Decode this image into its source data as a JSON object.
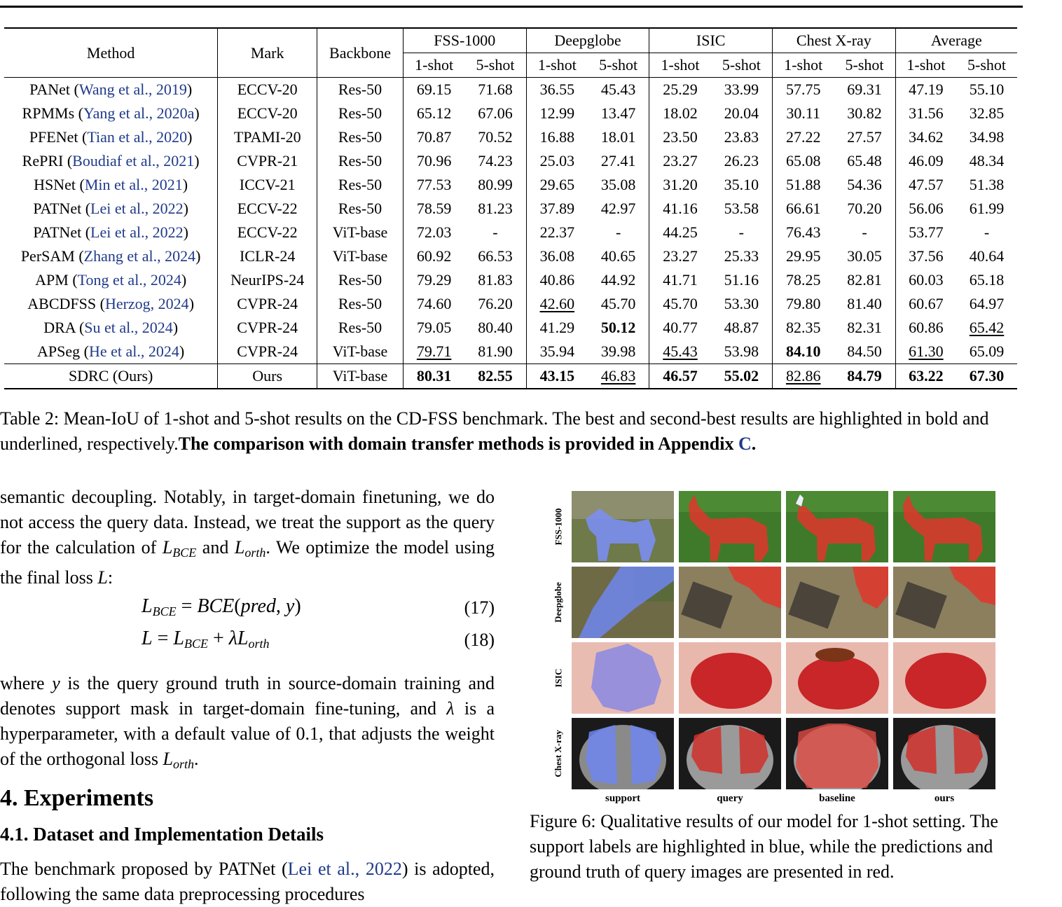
{
  "table": {
    "header": {
      "method": "Method",
      "mark": "Mark",
      "backbone": "Backbone",
      "groups": [
        "FSS-1000",
        "Deepglobe",
        "ISIC",
        "Chest X-ray",
        "Average"
      ],
      "shot1": "1-shot",
      "shot5": "5-shot"
    },
    "rows": [
      {
        "name": "PANet",
        "cite": "Wang et al., 2019",
        "mark": "ECCV-20",
        "backbone": "Res-50",
        "v": [
          "69.15",
          "71.68",
          "36.55",
          "45.43",
          "25.29",
          "33.99",
          "57.75",
          "69.31",
          "47.19",
          "55.10"
        ]
      },
      {
        "name": "RPMMs",
        "cite": "Yang et al., 2020a",
        "mark": "ECCV-20",
        "backbone": "Res-50",
        "v": [
          "65.12",
          "67.06",
          "12.99",
          "13.47",
          "18.02",
          "20.04",
          "30.11",
          "30.82",
          "31.56",
          "32.85"
        ]
      },
      {
        "name": "PFENet",
        "cite": "Tian et al., 2020",
        "mark": "TPAMI-20",
        "backbone": "Res-50",
        "v": [
          "70.87",
          "70.52",
          "16.88",
          "18.01",
          "23.50",
          "23.83",
          "27.22",
          "27.57",
          "34.62",
          "34.98"
        ]
      },
      {
        "name": "RePRI",
        "cite": "Boudiaf et al., 2021",
        "mark": "CVPR-21",
        "backbone": "Res-50",
        "v": [
          "70.96",
          "74.23",
          "25.03",
          "27.41",
          "23.27",
          "26.23",
          "65.08",
          "65.48",
          "46.09",
          "48.34"
        ]
      },
      {
        "name": "HSNet",
        "cite": "Min et al., 2021",
        "mark": "ICCV-21",
        "backbone": "Res-50",
        "v": [
          "77.53",
          "80.99",
          "29.65",
          "35.08",
          "31.20",
          "35.10",
          "51.88",
          "54.36",
          "47.57",
          "51.38"
        ]
      },
      {
        "name": "PATNet",
        "cite": "Lei et al., 2022",
        "mark": "ECCV-22",
        "backbone": "Res-50",
        "v": [
          "78.59",
          "81.23",
          "37.89",
          "42.97",
          "41.16",
          "53.58",
          "66.61",
          "70.20",
          "56.06",
          "61.99"
        ]
      },
      {
        "name": "PATNet",
        "cite": "Lei et al., 2022",
        "mark": "ECCV-22",
        "backbone": "ViT-base",
        "v": [
          "72.03",
          "-",
          "22.37",
          "-",
          "44.25",
          "-",
          "76.43",
          "-",
          "53.77",
          "-"
        ]
      },
      {
        "name": "PerSAM",
        "cite": "Zhang et al., 2024",
        "mark": "ICLR-24",
        "backbone": "ViT-base",
        "v": [
          "60.92",
          "66.53",
          "36.08",
          "40.65",
          "23.27",
          "25.33",
          "29.95",
          "30.05",
          "37.56",
          "40.64"
        ]
      },
      {
        "name": "APM",
        "cite": "Tong et al., 2024",
        "mark": "NeurIPS-24",
        "backbone": "Res-50",
        "v": [
          "79.29",
          "81.83",
          "40.86",
          "44.92",
          "41.71",
          "51.16",
          "78.25",
          "82.81",
          "60.03",
          "65.18"
        ]
      },
      {
        "name": "ABCDFSS",
        "cite": "Herzog, 2024",
        "mark": "CVPR-24",
        "backbone": "Res-50",
        "v": [
          "74.60",
          "76.20",
          "42.60",
          "45.70",
          "45.70",
          "53.30",
          "79.80",
          "81.40",
          "60.67",
          "64.97"
        ]
      },
      {
        "name": "DRA",
        "cite": "Su et al., 2024",
        "mark": "CVPR-24",
        "backbone": "Res-50",
        "v": [
          "79.05",
          "80.40",
          "41.29",
          "50.12",
          "40.77",
          "48.87",
          "82.35",
          "82.31",
          "60.86",
          "65.42"
        ]
      },
      {
        "name": "APSeg",
        "cite": "He et al., 2024",
        "mark": "CVPR-24",
        "backbone": "ViT-base",
        "v": [
          "79.71",
          "81.90",
          "35.94",
          "39.98",
          "45.43",
          "53.98",
          "84.10",
          "84.50",
          "61.30",
          "65.09"
        ]
      }
    ],
    "ours": {
      "name": "SDRC (Ours)",
      "mark": "Ours",
      "backbone": "ViT-base",
      "v": [
        "80.31",
        "82.55",
        "43.15",
        "46.83",
        "46.57",
        "55.02",
        "82.86",
        "84.79",
        "63.22",
        "67.30"
      ]
    },
    "bold_cells": [
      [
        10,
        3
      ],
      [
        11,
        6
      ]
    ],
    "underline_cells": [
      [
        9,
        2
      ],
      [
        10,
        9
      ],
      [
        11,
        0
      ],
      [
        11,
        4
      ],
      [
        11,
        8
      ]
    ],
    "ours_underline": [
      3,
      6
    ],
    "caption_plain": "Table 2: Mean-IoU of 1-shot and 5-shot results on the CD-FSS benchmark. The best and second-best results are highlighted in bold and underlined, respectively.",
    "caption_bold": "The comparison with domain transfer methods is provided in Appendix ",
    "caption_link": "C",
    "caption_end": "."
  },
  "text": {
    "p1_a": "semantic decoupling. Notably, in target-domain finetuning, we do not access the query data. Instead, we treat the support as the query for the calculation of ",
    "p1_b": " and ",
    "p1_c": ". We optimize the model using the final loss ",
    "p1_d": ":",
    "eq17_num": "(17)",
    "eq18_num": "(18)",
    "p2_a": "where ",
    "p2_b": " is the query ground truth in source-domain training and denotes support mask in target-domain fine-tuning, and ",
    "p2_c": " is a hyperparameter, with a default value of 0.1, that adjusts the weight of the orthogonal loss ",
    "p2_d": ".",
    "h_experiments": "4. Experiments",
    "h_dataset": "4.1. Dataset and Implementation Details",
    "p3_a": "The benchmark proposed by PATNet (",
    "p3_cite": "Lei et al., 2022",
    "p3_b": ") is adopted, following the same data preprocessing procedures"
  },
  "figure": {
    "row_labels": [
      "FSS-1000",
      "Deepglobe",
      "ISIC",
      "Chest X-ray"
    ],
    "col_labels": [
      "support",
      "query",
      "baseline",
      "ours"
    ],
    "caption": "Figure 6: Qualitative results of our model for 1-shot setting. The support labels are highlighted in blue, while the predictions and ground truth of query images are presented in red.",
    "colors": {
      "support_mask": "#6f86f0",
      "pred_mask": "#e0302a"
    }
  }
}
